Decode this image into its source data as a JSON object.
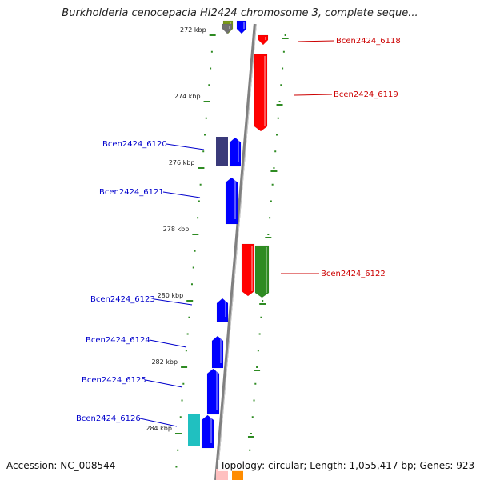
{
  "title": "Burkholderia cenocepacia HI2424 chromosome 3, complete seque...",
  "footer": {
    "accession": "Accession: NC_008544",
    "summary": "Topology: circular; Length: 1,055,417 bp; Genes: 923"
  },
  "axis": {
    "unit": "kbp",
    "ticks": [
      {
        "kbp": 272,
        "label": "272 kbp"
      },
      {
        "kbp": 274,
        "label": "274 kbp"
      },
      {
        "kbp": 276,
        "label": "276 kbp"
      },
      {
        "kbp": 278,
        "label": "278 kbp"
      },
      {
        "kbp": 280,
        "label": "280 kbp"
      },
      {
        "kbp": 282,
        "label": "282 kbp"
      },
      {
        "kbp": 284,
        "label": "284 kbp"
      }
    ]
  },
  "genes": [
    {
      "id": "Bcen2424_6118",
      "strand": "forward",
      "color": "#ff0000",
      "labelled": true
    },
    {
      "id": "Bcen2424_6119",
      "strand": "forward",
      "color": "#ff0000",
      "labelled": true
    },
    {
      "id": "Bcen2424_6120",
      "strand": "reverse",
      "color": "#0000ff",
      "labelled": true
    },
    {
      "id": "Bcen2424_6121",
      "strand": "reverse",
      "color": "#0000ff",
      "labelled": true
    },
    {
      "id": "Bcen2424_6122",
      "strand": "forward",
      "color": "#ff0000",
      "labelled": true
    },
    {
      "id": "Bcen2424_6123",
      "strand": "reverse",
      "color": "#0000ff",
      "labelled": true
    },
    {
      "id": "Bcen2424_6124",
      "strand": "reverse",
      "color": "#0000ff",
      "labelled": true
    },
    {
      "id": "Bcen2424_6125",
      "strand": "reverse",
      "color": "#0000ff",
      "labelled": true
    },
    {
      "id": "Bcen2424_6126",
      "strand": "reverse",
      "color": "#0000ff",
      "labelled": true
    }
  ],
  "colors": {
    "backbone": "#808080",
    "tick": "#2e8b22",
    "forward_label": "#cc0000",
    "reverse_label": "#0000cc",
    "feature_red": "#ff0000",
    "feature_blue": "#0000ff",
    "feature_green": "#2e8b22",
    "feature_navy": "#3a3a7a",
    "feature_cyan": "#20c0c0",
    "feature_olive": "#7a9a1a",
    "feature_gray": "#707070",
    "feature_pink": "#ffc0c0",
    "feature_orange": "#ff8c00"
  }
}
